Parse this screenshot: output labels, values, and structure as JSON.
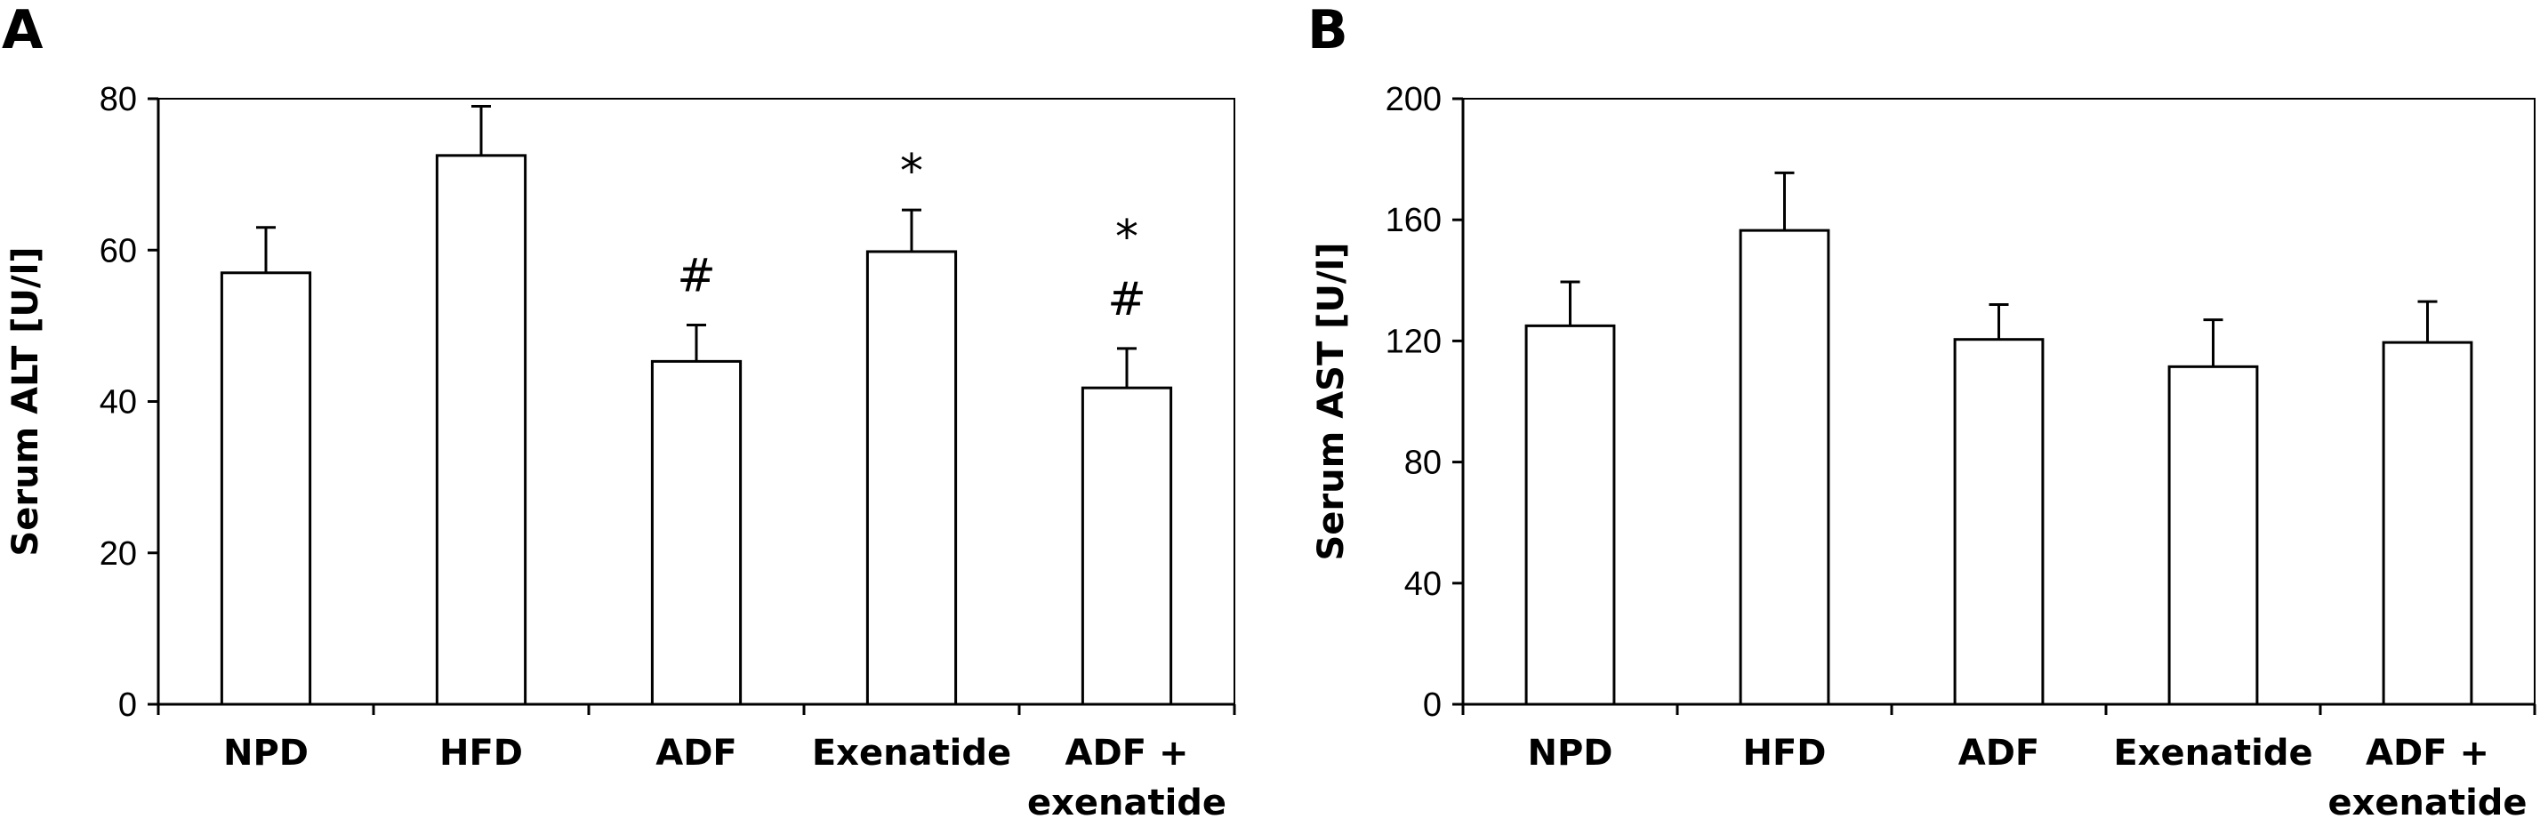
{
  "chart_data": [
    {
      "panel_label": "A",
      "type": "bar",
      "categories": [
        "NPD",
        "HFD",
        "ADF",
        "Exenatide",
        "ADF +\nexenatide"
      ],
      "values": [
        57,
        72.5,
        45.3,
        59.8,
        41.8
      ],
      "errors": [
        6,
        6.5,
        4.8,
        5.5,
        5.2
      ],
      "annotations": [
        "",
        "",
        "#",
        "*",
        "*\n#"
      ],
      "title": "",
      "xlabel": "",
      "ylabel": "Serum ALT [U/l]",
      "ylim": [
        0,
        80
      ],
      "yticks": [
        0,
        20,
        40,
        60,
        80
      ],
      "grid": false
    },
    {
      "panel_label": "B",
      "type": "bar",
      "categories": [
        "NPD",
        "HFD",
        "ADF",
        "Exenatide",
        "ADF +\nexenatide"
      ],
      "values": [
        125,
        156.5,
        120.5,
        111.5,
        119.5
      ],
      "errors": [
        14.5,
        19,
        11.5,
        15.5,
        13.5
      ],
      "annotations": [
        "",
        "",
        "",
        "",
        ""
      ],
      "title": "",
      "xlabel": "",
      "ylabel": "Serum AST [U/l]",
      "ylim": [
        0,
        200
      ],
      "yticks": [
        0,
        40,
        80,
        120,
        160,
        200
      ],
      "grid": false
    }
  ]
}
